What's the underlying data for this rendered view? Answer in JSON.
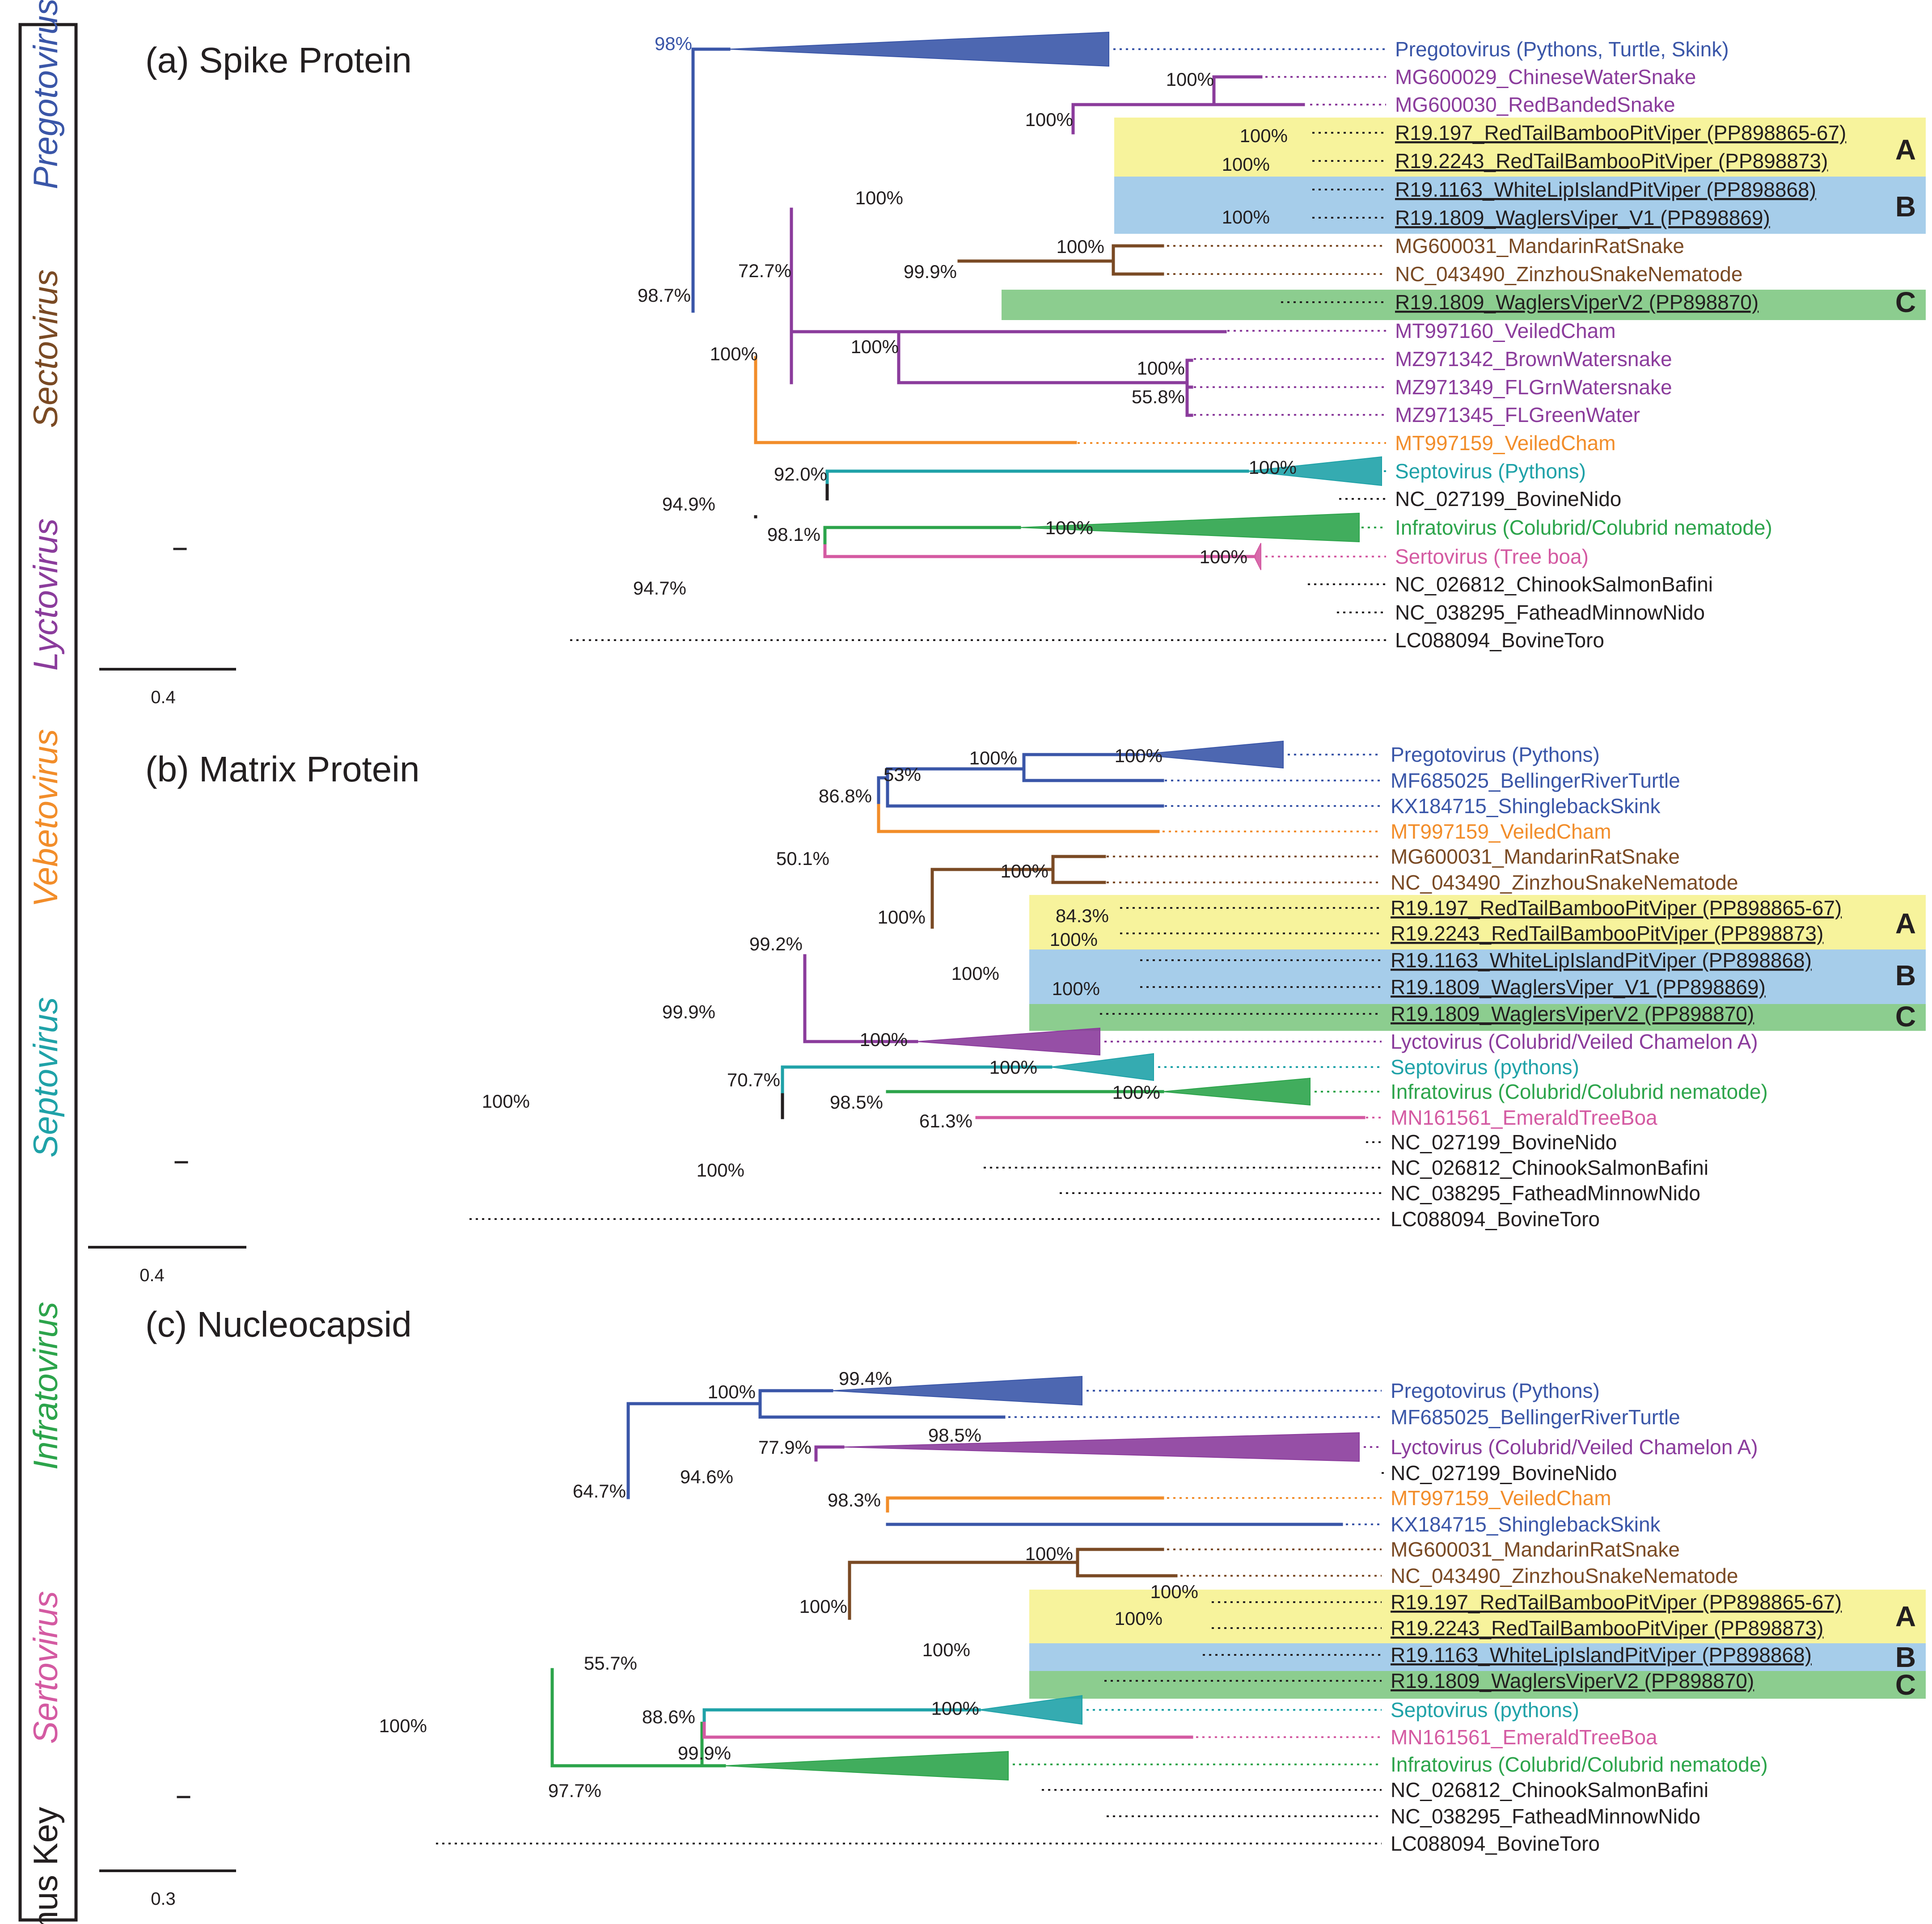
{
  "colors": {
    "black": "#231f20",
    "preg": "#3a56a8",
    "serto": "#d45aa2",
    "infra": "#2ca44b",
    "septo": "#1fa2a8",
    "vebe": "#f28d2a",
    "lycto": "#8b3c9c",
    "secto": "#7a4a24",
    "hlA": "#f7f39c",
    "hlB": "#a6cdea",
    "hlC": "#8ccd8f"
  },
  "genus_key": {
    "title": "Genus Key",
    "items": [
      {
        "label": "Sertovirus",
        "color": "serto"
      },
      {
        "label": "Infratovirus",
        "color": "infra"
      },
      {
        "label": "Septovirus",
        "color": "septo"
      },
      {
        "label": "Vebetovirus",
        "color": "vebe"
      },
      {
        "label": "Lyctovirus",
        "color": "lycto"
      },
      {
        "label": "Sectovirus",
        "color": "secto"
      },
      {
        "label": "Pregotovirus",
        "color": "preg"
      }
    ]
  },
  "panels": [
    {
      "title": "(a) Spike Protein",
      "scale": "0.4",
      "highlight_letters": [
        "A",
        "B",
        "C"
      ],
      "leaves": [
        {
          "label": "Pregotovirus (Pythons, Turtle, Skink)",
          "color": "preg"
        },
        {
          "label": "MG600029_ChineseWaterSnake",
          "color": "lycto"
        },
        {
          "label": "MG600030_RedBandedSnake",
          "color": "lycto"
        },
        {
          "label": "R19.197_RedTailBambooPitViper (PP898865-67)",
          "color": "black"
        },
        {
          "label": "R19.2243_RedTailBambooPitViper (PP898873)",
          "color": "black"
        },
        {
          "label": "R19.1163_WhiteLipIslandPitViper (PP898868)",
          "color": "black"
        },
        {
          "label": "R19.1809_WaglersViper_V1 (PP898869)",
          "color": "black"
        },
        {
          "label": "MG600031_MandarinRatSnake",
          "color": "secto"
        },
        {
          "label": "NC_043490_ZinzhouSnakeNematode",
          "color": "secto"
        },
        {
          "label": "R19.1809_WaglersViperV2 (PP898870)",
          "color": "black"
        },
        {
          "label": "MT997160_VeiledCham",
          "color": "lycto"
        },
        {
          "label": "MZ971342_BrownWatersnake",
          "color": "lycto"
        },
        {
          "label": "MZ971349_FLGrnWatersnake",
          "color": "lycto"
        },
        {
          "label": "MZ971345_FLGreenWater",
          "color": "lycto"
        },
        {
          "label": "MT997159_VeiledCham",
          "color": "vebe"
        },
        {
          "label": "Septovirus (Pythons)",
          "color": "septo"
        },
        {
          "label": "NC_027199_BovineNido",
          "color": "black"
        },
        {
          "label": "Infratovirus (Colubrid/Colubrid nematode)",
          "color": "infra"
        },
        {
          "label": "Sertovirus (Tree boa)",
          "color": "serto"
        },
        {
          "label": "NC_026812_ChinookSalmonBafini",
          "color": "black"
        },
        {
          "label": "NC_038295_FatheadMinnowNido",
          "color": "black"
        },
        {
          "label": "LC088094_BovineToro",
          "color": "black"
        }
      ],
      "supports": [
        "98%",
        "100%",
        "100%",
        "100%",
        "100%",
        "100%",
        "100%",
        "99.9%",
        "100%",
        "72.7%",
        "100%",
        "100%",
        "55.8%",
        "98.7%",
        "100%",
        "92.0%",
        "94.9%",
        "100%",
        "98.1%",
        "100%",
        "100%",
        "94.7%"
      ]
    },
    {
      "title": "(b) Matrix Protein",
      "scale": "0.4",
      "highlight_letters": [
        "A",
        "B",
        "C"
      ],
      "leaves": [
        {
          "label": "Pregotovirus (Pythons)",
          "color": "preg"
        },
        {
          "label": "MF685025_BellingerRiverTurtle",
          "color": "preg"
        },
        {
          "label": "KX184715_ShinglebackSkink",
          "color": "preg"
        },
        {
          "label": "MT997159_VeiledCham",
          "color": "vebe"
        },
        {
          "label": "MG600031_MandarinRatSnake",
          "color": "secto"
        },
        {
          "label": "NC_043490_ZinzhouSnakeNematode",
          "color": "secto"
        },
        {
          "label": "R19.197_RedTailBambooPitViper (PP898865-67)",
          "color": "black"
        },
        {
          "label": "R19.2243_RedTailBambooPitViper (PP898873)",
          "color": "black"
        },
        {
          "label": "R19.1163_WhiteLipIslandPitViper (PP898868)",
          "color": "black"
        },
        {
          "label": "R19.1809_WaglersViper_V1 (PP898869)",
          "color": "black"
        },
        {
          "label": "R19.1809_WaglersViperV2 (PP898870)",
          "color": "black"
        },
        {
          "label": "Lyctovirus (Colubrid/Veiled Chamelon A)",
          "color": "lycto"
        },
        {
          "label": "Septovirus (pythons)",
          "color": "septo"
        },
        {
          "label": "Infratovirus (Colubrid/Colubrid nematode)",
          "color": "infra"
        },
        {
          "label": "MN161561_EmeraldTreeBoa",
          "color": "serto"
        },
        {
          "label": "NC_027199_BovineNido",
          "color": "black"
        },
        {
          "label": "NC_026812_ChinookSalmonBafini",
          "color": "black"
        },
        {
          "label": "NC_038295_FatheadMinnowNido",
          "color": "black"
        },
        {
          "label": "LC088094_BovineToro",
          "color": "black"
        }
      ],
      "supports": [
        "100%",
        "100%",
        "53%",
        "86.8%",
        "50.1%",
        "100%",
        "84.3%",
        "100%",
        "100%",
        "100%",
        "100%",
        "99.2%",
        "100%",
        "99.9%",
        "100%",
        "100%",
        "61.3%",
        "98.5%",
        "70.7%",
        "100%",
        "100%"
      ]
    },
    {
      "title": "(c)  Nucleocapsid",
      "scale": "0.3",
      "highlight_letters": [
        "A",
        "B",
        "C"
      ],
      "leaves": [
        {
          "label": "Pregotovirus (Pythons)",
          "color": "preg"
        },
        {
          "label": "MF685025_BellingerRiverTurtle",
          "color": "preg"
        },
        {
          "label": "Lyctovirus (Colubrid/Veiled Chamelon A)",
          "color": "lycto"
        },
        {
          "label": "NC_027199_BovineNido",
          "color": "black"
        },
        {
          "label": "MT997159_VeiledCham",
          "color": "vebe"
        },
        {
          "label": "KX184715_ShinglebackSkink",
          "color": "preg"
        },
        {
          "label": "MG600031_MandarinRatSnake",
          "color": "secto"
        },
        {
          "label": "NC_043490_ZinzhouSnakeNematode",
          "color": "secto"
        },
        {
          "label": "R19.197_RedTailBambooPitViper (PP898865-67)",
          "color": "black"
        },
        {
          "label": "R19.2243_RedTailBambooPitViper (PP898873)",
          "color": "black"
        },
        {
          "label": "R19.1163_WhiteLipIslandPitViper (PP898868)",
          "color": "black"
        },
        {
          "label": "R19.1809_WaglersViperV2 (PP898870)",
          "color": "black"
        },
        {
          "label": "Septovirus (pythons)",
          "color": "septo"
        },
        {
          "label": "MN161561_EmeraldTreeBoa",
          "color": "serto"
        },
        {
          "label": "Infratovirus (Colubrid/Colubrid nematode)",
          "color": "infra"
        },
        {
          "label": "NC_026812_ChinookSalmonBafini",
          "color": "black"
        },
        {
          "label": "NC_038295_FatheadMinnowNido",
          "color": "black"
        },
        {
          "label": "LC088094_BovineToro",
          "color": "black"
        }
      ],
      "supports": [
        "99.4%",
        "100%",
        "98.5%",
        "77.9%",
        "98.3%",
        "94.6%",
        "100%",
        "100%",
        "100%",
        "100%",
        "100%",
        "64.7%",
        "100%",
        "88.6%",
        "99.9%",
        "55.7%",
        "100%",
        "97.7%"
      ]
    }
  ]
}
